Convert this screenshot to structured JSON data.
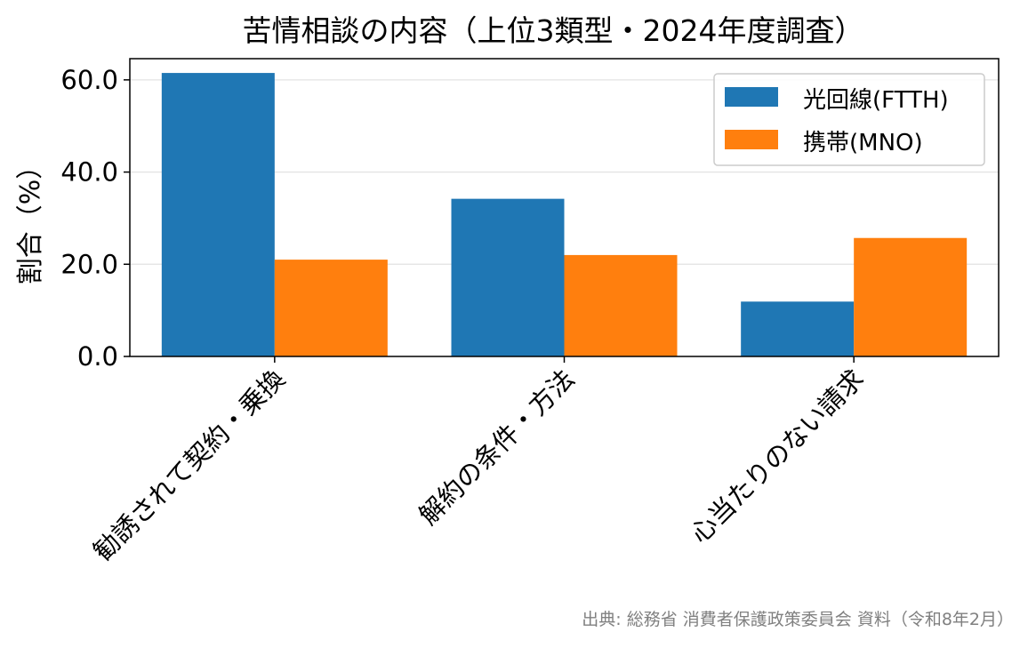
{
  "chart_data": {
    "type": "bar",
    "title": "苦情相談の内容（上位3類型・2024年度調査）",
    "xlabel": "",
    "ylabel": "割合（%）",
    "categories": [
      "勧誘されて契約・乗換",
      "解約の条件・方法",
      "心当たりのない請求"
    ],
    "series": [
      {
        "name": "光回線(FTTH)",
        "color": "#1f77b4",
        "values": [
          61.5,
          34.2,
          11.9
        ]
      },
      {
        "name": "携帯(MNO)",
        "color": "#ff7f0e",
        "values": [
          21.0,
          22.0,
          25.7
        ]
      }
    ],
    "ylim": [
      0,
      64.6
    ],
    "yticks": [
      0,
      20,
      40,
      60
    ],
    "ytick_labels": [
      "0.0",
      "20.0",
      "40.0",
      "60.0"
    ],
    "grid": "horizontal",
    "legend_position": "top-right",
    "source_note": "出典: 総務省 消費者保護政策委員会 資料（令和8年2月）"
  }
}
